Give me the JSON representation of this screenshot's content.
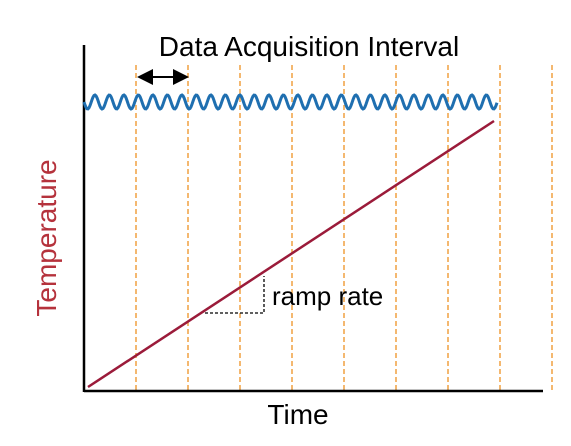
{
  "title": "Data Acquisition Interval",
  "x_axis_label": "Time",
  "y_axis_label": "Temperature",
  "annotation_label": "ramp rate",
  "colors": {
    "axis": "#000000",
    "interval_lines": "#f0a040",
    "ramp_line": "#9b1b3a",
    "oscillation": "#1f6fb0",
    "y_label": "#b5323c",
    "bracket": "#000000"
  },
  "interval_marker": "double-arrow",
  "interval_line_count": 9
}
